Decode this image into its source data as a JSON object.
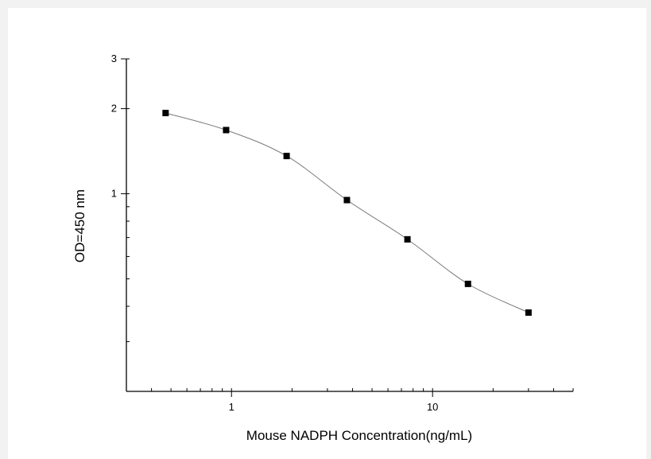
{
  "chart_data": {
    "type": "scatter",
    "title": "",
    "xlabel": "Mouse NADPH  Concentration(ng/mL)",
    "ylabel": "OD=450 nm",
    "x_scale": "log",
    "y_scale": "log",
    "xlim": [
      0.3,
      50
    ],
    "ylim": [
      0.2,
      3
    ],
    "x_ticks": [
      {
        "value": 1,
        "label": "1"
      },
      {
        "value": 10,
        "label": "10"
      }
    ],
    "y_ticks": [
      {
        "value": 1,
        "label": "1"
      },
      {
        "value": 2,
        "label": "2"
      },
      {
        "value": 3,
        "label": "3"
      }
    ],
    "grid": false,
    "legend": "none",
    "series": [
      {
        "x": [
          0.47,
          0.94,
          1.88,
          3.75,
          7.5,
          15,
          30
        ],
        "y": [
          1.93,
          1.68,
          1.36,
          0.95,
          0.69,
          0.48,
          0.38
        ],
        "marker": "square",
        "marker_color": "#000000",
        "line_color": "#7a7a7a",
        "line": "smooth"
      }
    ]
  }
}
